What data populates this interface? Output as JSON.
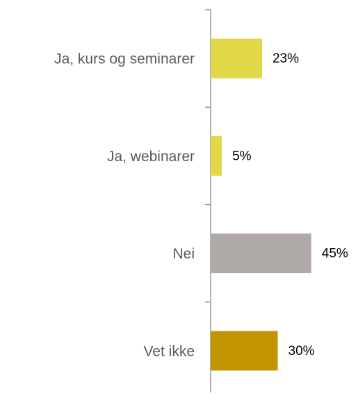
{
  "chart_data": {
    "type": "hbar",
    "categories": [
      "Ja, kurs og seminarer",
      "Ja, webinarer",
      "Nei",
      "Vet ikke"
    ],
    "values": [
      23,
      5,
      45,
      30
    ],
    "value_labels": [
      "23%",
      "5%",
      "45%",
      "30%"
    ],
    "colors": [
      "#e2d94a",
      "#e2d94a",
      "#afaaa8",
      "#c39500"
    ],
    "xlim": [
      0,
      60
    ]
  }
}
